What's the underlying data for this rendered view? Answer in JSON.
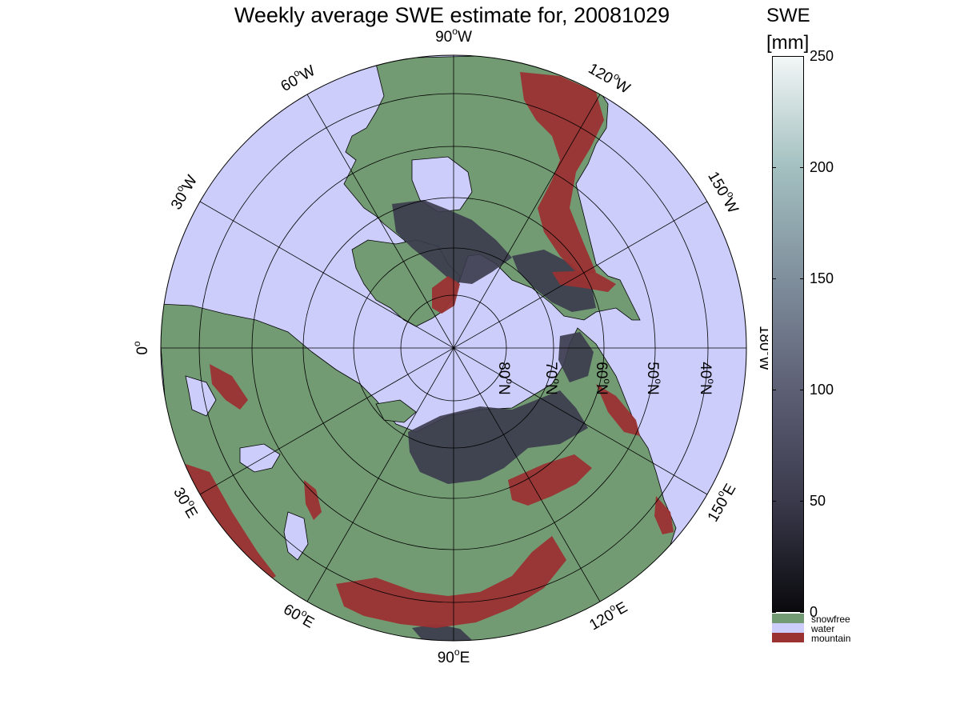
{
  "title": "Weekly average SWE estimate for, 20081029",
  "colorbar": {
    "title": "SWE",
    "unit": "[mm]",
    "min": 0,
    "max": 250,
    "ticks": [
      "0",
      "50",
      "100",
      "150",
      "200",
      "250"
    ],
    "gradient": [
      "#0a0a0e",
      "#3a3a4c",
      "#5d5f75",
      "#7f8f9c",
      "#a3c0c0",
      "#f2f6f6"
    ],
    "categories": [
      {
        "label": "snowfree",
        "color": "#739b73"
      },
      {
        "label": "water",
        "color": "#cccdfb"
      },
      {
        "label": "mountain",
        "color": "#9a3232"
      }
    ]
  },
  "map": {
    "projection": "north polar stereographic",
    "ocean_color": "#cccdfb",
    "land_color": "#739b73",
    "mountain_color": "#9a3232",
    "snow_color": "#3b3b4d",
    "longitude_labels": [
      {
        "text": "90°W",
        "base": "90",
        "sup": "o",
        "suffix": "W"
      },
      {
        "text": "120°W",
        "base": "120",
        "sup": "o",
        "suffix": "W"
      },
      {
        "text": "150°W",
        "base": "150",
        "sup": "o",
        "suffix": "W"
      },
      {
        "text": "180°W",
        "base": "180",
        "sup": "o",
        "suffix": "W"
      },
      {
        "text": "150°E",
        "base": "150",
        "sup": "o",
        "suffix": "E"
      },
      {
        "text": "120°E",
        "base": "120",
        "sup": "o",
        "suffix": "E"
      },
      {
        "text": "90°E",
        "base": "90",
        "sup": "o",
        "suffix": "E"
      },
      {
        "text": "60°E",
        "base": "60",
        "sup": "o",
        "suffix": "E"
      },
      {
        "text": "30°E",
        "base": "30",
        "sup": "o",
        "suffix": "E"
      },
      {
        "text": "0°",
        "base": "0",
        "sup": "o",
        "suffix": ""
      },
      {
        "text": "30°W",
        "base": "30",
        "sup": "o",
        "suffix": "W"
      },
      {
        "text": "60°W",
        "base": "60",
        "sup": "o",
        "suffix": "W"
      }
    ],
    "latitude_labels": [
      {
        "text": "80°N",
        "base": "80",
        "sup": "o",
        "suffix": "N"
      },
      {
        "text": "70°N",
        "base": "70",
        "sup": "o",
        "suffix": "N"
      },
      {
        "text": "60°N",
        "base": "60",
        "sup": "o",
        "suffix": "N"
      },
      {
        "text": "50°N",
        "base": "50",
        "sup": "o",
        "suffix": "N"
      },
      {
        "text": "40°N",
        "base": "40",
        "sup": "o",
        "suffix": "N"
      }
    ]
  }
}
